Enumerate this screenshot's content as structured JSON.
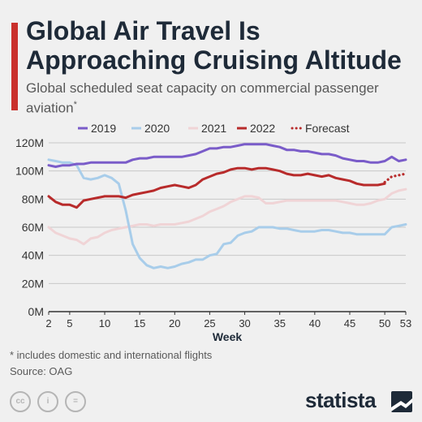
{
  "header": {
    "title": "Global Air Travel Is Approaching Cruising Altitude",
    "subtitle": "Global scheduled seat capacity on commercial passenger aviation",
    "subtitle_mark": "*"
  },
  "footer": {
    "footnote": "* includes domestic and international flights",
    "source": "Source: OAG",
    "brand": "statista",
    "license_icons": [
      "cc-icon",
      "attribution-icon",
      "no-derivatives-icon"
    ]
  },
  "colors": {
    "accent": "#c9302c",
    "2019": "#7a5cc9",
    "2020": "#a8cdea",
    "2021": "#f0d4d6",
    "2022": "#b82b2b",
    "Forecast": "#b82b2b"
  },
  "chart_data": {
    "type": "line",
    "xlabel": "Week",
    "ylabel": "",
    "xlim": [
      2,
      53
    ],
    "ylim": [
      0,
      120
    ],
    "x_ticks": [
      2,
      5,
      10,
      15,
      20,
      25,
      30,
      35,
      40,
      45,
      50,
      53
    ],
    "y_ticks": [
      0,
      20,
      40,
      60,
      80,
      100,
      120
    ],
    "y_tick_labels": [
      "0M",
      "20M",
      "40M",
      "60M",
      "80M",
      "100M",
      "120M"
    ],
    "legend_position": "top",
    "grid": "horizontal",
    "series": [
      {
        "name": "2019",
        "style": "solid",
        "x": [
          2,
          3,
          4,
          5,
          6,
          7,
          8,
          9,
          10,
          11,
          12,
          13,
          14,
          15,
          16,
          17,
          18,
          19,
          20,
          21,
          22,
          23,
          24,
          25,
          26,
          27,
          28,
          29,
          30,
          31,
          32,
          33,
          34,
          35,
          36,
          37,
          38,
          39,
          40,
          41,
          42,
          43,
          44,
          45,
          46,
          47,
          48,
          49,
          50,
          51,
          52,
          53
        ],
        "values": [
          104,
          103,
          104,
          104,
          105,
          105,
          106,
          106,
          106,
          106,
          106,
          106,
          108,
          109,
          109,
          110,
          110,
          110,
          110,
          110,
          111,
          112,
          114,
          116,
          116,
          117,
          117,
          118,
          119,
          119,
          119,
          119,
          118,
          117,
          115,
          115,
          114,
          114,
          113,
          112,
          112,
          111,
          109,
          108,
          107,
          107,
          106,
          106,
          107,
          110,
          107,
          108
        ]
      },
      {
        "name": "2020",
        "style": "solid",
        "x": [
          2,
          3,
          4,
          5,
          6,
          7,
          8,
          9,
          10,
          11,
          12,
          13,
          14,
          15,
          16,
          17,
          18,
          19,
          20,
          21,
          22,
          23,
          24,
          25,
          26,
          27,
          28,
          29,
          30,
          31,
          32,
          33,
          34,
          35,
          36,
          37,
          38,
          39,
          40,
          41,
          42,
          43,
          44,
          45,
          46,
          47,
          48,
          49,
          50,
          51,
          52,
          53
        ],
        "values": [
          108,
          107,
          106,
          106,
          104,
          95,
          94,
          95,
          97,
          95,
          91,
          72,
          48,
          38,
          33,
          31,
          32,
          31,
          32,
          34,
          35,
          37,
          37,
          40,
          41,
          48,
          49,
          54,
          56,
          57,
          60,
          60,
          60,
          59,
          59,
          58,
          57,
          57,
          57,
          58,
          58,
          57,
          56,
          56,
          55,
          55,
          55,
          55,
          55,
          60,
          61,
          62
        ]
      },
      {
        "name": "2021",
        "style": "solid",
        "x": [
          2,
          3,
          4,
          5,
          6,
          7,
          8,
          9,
          10,
          11,
          12,
          13,
          14,
          15,
          16,
          17,
          18,
          19,
          20,
          21,
          22,
          23,
          24,
          25,
          26,
          27,
          28,
          29,
          30,
          31,
          32,
          33,
          34,
          35,
          36,
          37,
          38,
          39,
          40,
          41,
          42,
          43,
          44,
          45,
          46,
          47,
          48,
          49,
          50,
          51,
          52,
          53
        ],
        "values": [
          60,
          56,
          54,
          52,
          51,
          48,
          52,
          53,
          56,
          58,
          59,
          60,
          61,
          62,
          62,
          61,
          62,
          62,
          62,
          63,
          64,
          66,
          68,
          71,
          73,
          75,
          78,
          80,
          82,
          82,
          81,
          77,
          77,
          78,
          79,
          79,
          79,
          79,
          79,
          79,
          79,
          79,
          78,
          77,
          76,
          76,
          77,
          79,
          80,
          84,
          86,
          87
        ]
      },
      {
        "name": "2022",
        "style": "solid",
        "x": [
          2,
          3,
          4,
          5,
          6,
          7,
          8,
          9,
          10,
          11,
          12,
          13,
          14,
          15,
          16,
          17,
          18,
          19,
          20,
          21,
          22,
          23,
          24,
          25,
          26,
          27,
          28,
          29,
          30,
          31,
          32,
          33,
          34,
          35,
          36,
          37,
          38,
          39,
          40,
          41,
          42,
          43,
          44,
          45,
          46,
          47,
          48,
          49,
          50
        ],
        "values": [
          82,
          78,
          76,
          76,
          74,
          79,
          80,
          81,
          82,
          82,
          82,
          81,
          83,
          84,
          85,
          86,
          88,
          89,
          90,
          89,
          88,
          90,
          94,
          96,
          98,
          99,
          101,
          102,
          102,
          101,
          102,
          102,
          101,
          100,
          98,
          97,
          97,
          98,
          97,
          96,
          97,
          95,
          94,
          93,
          91,
          90,
          90,
          90,
          91
        ]
      },
      {
        "name": "Forecast",
        "style": "dotted",
        "x": [
          50,
          51,
          52,
          53
        ],
        "values": [
          92,
          96,
          97,
          98
        ]
      }
    ]
  }
}
